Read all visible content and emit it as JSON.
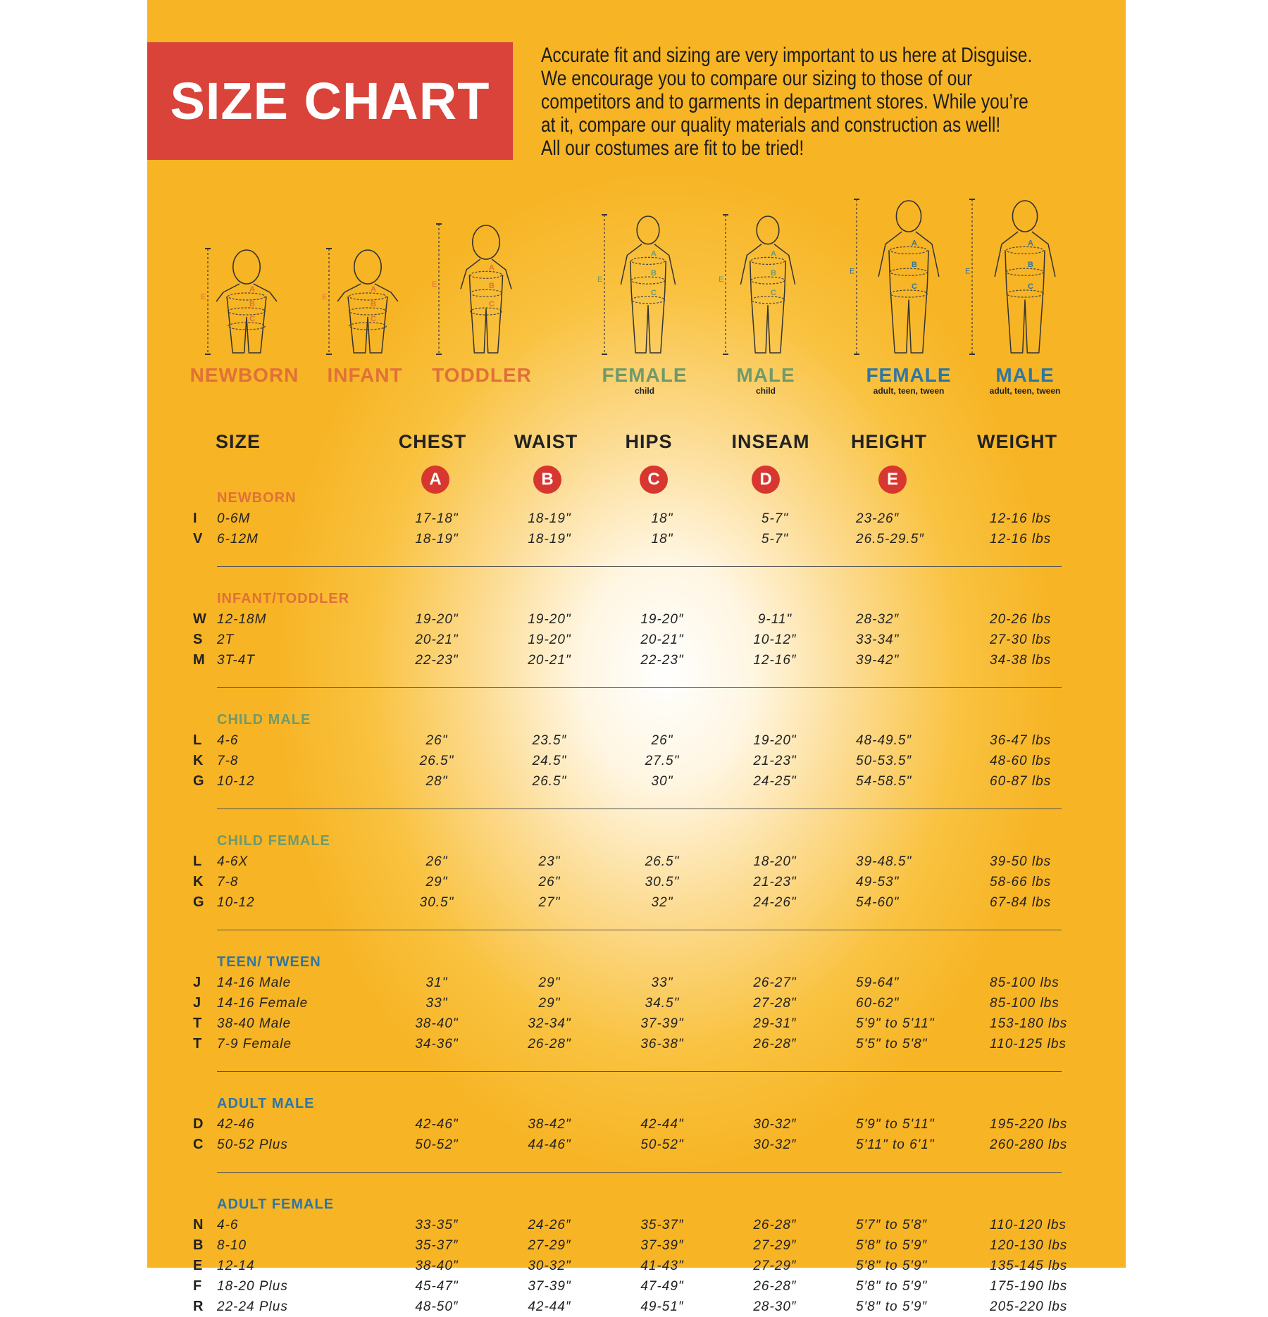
{
  "title": "SIZE CHART",
  "intro_lines": [
    "Accurate fit and sizing are very important to us here at Disguise.",
    "We encourage you to compare our sizing to those of our",
    "competitors and to garments in department stores. While you’re",
    "at it, compare our quality materials and construction as well!",
    "All our costumes are fit to be tried!"
  ],
  "colors": {
    "orange": "#e0703a",
    "green": "#6f9a6a",
    "blue": "#2f76a3",
    "red": "#d9433a",
    "panel": "#f7b424"
  },
  "figures": [
    {
      "label": "NEWBORN",
      "sub": "",
      "color": "#e0703a",
      "kind": "baby"
    },
    {
      "label": "INFANT",
      "sub": "",
      "color": "#e0703a",
      "kind": "baby"
    },
    {
      "label": "TODDLER",
      "sub": "",
      "color": "#e0703a",
      "kind": "toddler"
    },
    {
      "label": "FEMALE",
      "sub": "child",
      "color": "#6f9a6a",
      "kind": "child"
    },
    {
      "label": "MALE",
      "sub": "child",
      "color": "#6f9a6a",
      "kind": "child"
    },
    {
      "label": "FEMALE",
      "sub": "adult, teen, tween",
      "color": "#2f76a3",
      "kind": "adult-f"
    },
    {
      "label": "MALE",
      "sub": "adult, teen, tween",
      "color": "#2f76a3",
      "kind": "adult-m"
    }
  ],
  "measure_letters": [
    "A",
    "B",
    "C",
    "D",
    "E"
  ],
  "headers": [
    "SIZE",
    "CHEST",
    "WAIST",
    "HIPS",
    "INSEAM",
    "HEIGHT",
    "WEIGHT"
  ],
  "groups": [
    {
      "title": "NEWBORN",
      "color": "#e0703a",
      "rows": [
        [
          "I",
          "0-6M",
          "17-18\"",
          "18-19\"",
          "18\"",
          "5-7\"",
          "23-26″",
          "12-16 lbs"
        ],
        [
          "V",
          "6-12M",
          "18-19\"",
          "18-19\"",
          "18\"",
          "5-7\"",
          "26.5-29.5″",
          "12-16 lbs"
        ]
      ]
    },
    {
      "title": "INFANT/TODDLER",
      "color": "#e0703a",
      "rows": [
        [
          "W",
          "12-18M",
          "19-20\"",
          "19-20\"",
          "19-20″",
          "9-11\"",
          "28-32″",
          "20-26 lbs"
        ],
        [
          "S",
          "2T",
          "20-21\"",
          "19-20\"",
          "20-21\"",
          "10-12″",
          "33-34\"",
          "27-30 lbs"
        ],
        [
          "M",
          "3T-4T",
          "22-23\"",
          "20-21\"",
          "22-23\"",
          "12-16″",
          "39-42\"",
          "34-38 lbs"
        ]
      ]
    },
    {
      "title": "CHILD MALE",
      "color": "#6f9a6a",
      "rows": [
        [
          "L",
          "4-6",
          "26\"",
          "23.5″",
          "26\"",
          "19-20\"",
          "48-49.5″",
          "36-47 lbs"
        ],
        [
          "K",
          "7-8",
          "26.5\"",
          "24.5\"",
          "27.5\"",
          "21-23\"",
          "50-53.5″",
          "48-60 lbs"
        ],
        [
          "G",
          "10-12",
          "28\"",
          "26.5\"",
          "30\"",
          "24-25\"",
          "54-58.5\"",
          "60-87 lbs"
        ]
      ]
    },
    {
      "title": "CHILD FEMALE",
      "color": "#6f9a6a",
      "rows": [
        [
          "L",
          "4-6X",
          "26\"",
          "23\"",
          "26.5\"",
          "18-20\"",
          "39-48.5\"",
          "39-50 lbs"
        ],
        [
          "K",
          "7-8",
          "29\"",
          "26\"",
          "30.5\"",
          "21-23\"",
          "49-53\"",
          "58-66 lbs"
        ],
        [
          "G",
          "10-12",
          "30.5\"",
          "27\"",
          "32\"",
          "24-26\"",
          "54-60\"",
          "67-84 lbs"
        ]
      ]
    },
    {
      "title": "TEEN/ TWEEN",
      "color": "#2f76a3",
      "rows": [
        [
          "J",
          "14-16 Male",
          "31\"",
          "29\"",
          "33\"",
          "26-27\"",
          "59-64\"",
          "85-100 lbs"
        ],
        [
          "J",
          "14-16 Female",
          "33\"",
          "29\"",
          "34.5\"",
          "27-28\"",
          "60-62\"",
          "85-100 lbs"
        ],
        [
          "T",
          "38-40 Male",
          "38-40\"",
          "32-34\"",
          "37-39\"",
          "29-31″",
          "5'9\" to 5'11\"",
          "153-180 lbs"
        ],
        [
          "T",
          "7-9 Female",
          "34-36\"",
          "26-28\"",
          "36-38\"",
          "26-28″",
          "5'5\" to 5'8\"",
          "110-125 lbs"
        ]
      ]
    },
    {
      "title": "ADULT MALE",
      "color": "#2f76a3",
      "rows": [
        [
          "D",
          "42-46",
          "42-46\"",
          "38-42\"",
          "42-44\"",
          "30-32″",
          "5'9\" to 5'11\"",
          "195-220 lbs"
        ],
        [
          "C",
          "50-52 Plus",
          "50-52\"",
          "44-46\"",
          "50-52\"",
          "30-32″",
          "5'11\" to 6'1\"",
          "260-280 lbs"
        ]
      ]
    },
    {
      "title": "ADULT FEMALE",
      "color": "#2f76a3",
      "rows": [
        [
          "N",
          "4-6",
          "33-35″",
          "24-26″",
          "35-37″",
          "26-28″",
          "5′7″ to 5′8″",
          "110-120 lbs"
        ],
        [
          "B",
          "8-10",
          "35-37″",
          "27-29″",
          "37-39″",
          "27-29″",
          "5′8″ to 5′9″",
          "120-130 lbs"
        ],
        [
          "E",
          "12-14",
          "38-40\"",
          "30-32\"",
          "41-43\"",
          "27-29″",
          "5′8\" to 5′9\"",
          "135-145 lbs"
        ],
        [
          "F",
          "18-20 Plus",
          "45-47\"",
          "37-39\"",
          "47-49\"",
          "26-28″",
          "5′8\" to 5′9\"",
          "175-190 lbs"
        ],
        [
          "R",
          "22-24 Plus",
          "48-50″",
          "42-44″",
          "49-51″",
          "28-30″",
          "5′8″ to 5′9″",
          "205-220 lbs"
        ]
      ]
    }
  ]
}
